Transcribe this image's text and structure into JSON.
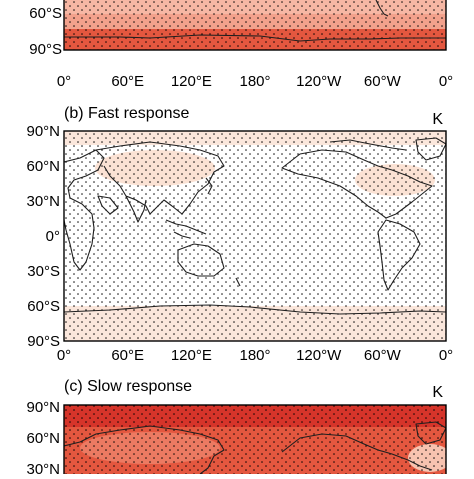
{
  "figure": {
    "unit": "K",
    "panels": [
      {
        "id": "a",
        "title": "",
        "fill": "#f2a18c",
        "lat_ticks": [
          "60°S",
          "90°S"
        ],
        "lon_ticks": [
          "0°",
          "60°E",
          "120°E",
          "180°",
          "120°W",
          "60°W",
          "0°"
        ]
      },
      {
        "id": "b",
        "title": "(b) Fast response",
        "fill": "#fbe7dc",
        "lat_ticks": [
          "90°N",
          "60°N",
          "30°N",
          "0°",
          "30°S",
          "60°S",
          "90°S"
        ],
        "lon_ticks": [
          "0°",
          "60°E",
          "120°E",
          "180°",
          "120°W",
          "60°W",
          "0°"
        ]
      },
      {
        "id": "c",
        "title": "(c) Slow response",
        "fill": "#e4573f",
        "lat_ticks": [
          "90°N",
          "60°N",
          "30°N"
        ],
        "lon_ticks": []
      }
    ]
  },
  "colors": {
    "deep_red": "#d6342a",
    "red": "#e4573f",
    "salmon": "#f2a18c",
    "peach": "#fbe7dc",
    "stipple": "#000000"
  }
}
